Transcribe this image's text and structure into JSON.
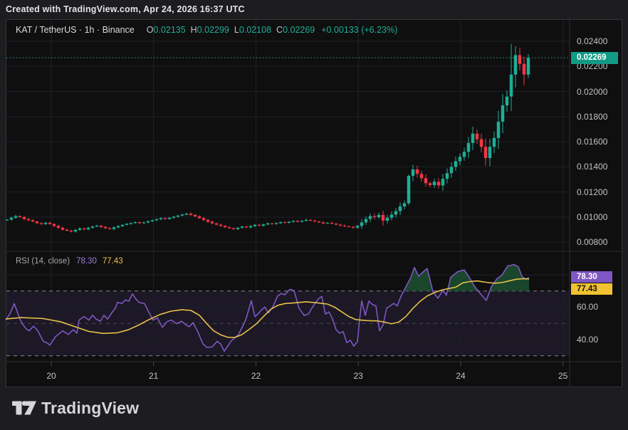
{
  "header": {
    "credit": "Created with TradingView.com, Apr 24, 2026 16:37 UTC"
  },
  "legend": {
    "title": "KAT / TetherUS · 1h · Binance",
    "o_label": "O",
    "o": "0.02135",
    "h_label": "H",
    "h": "0.02299",
    "l_label": "L",
    "l": "0.02108",
    "c_label": "C",
    "c": "0.02269",
    "change": "+0.00133 (+6.23%)"
  },
  "rsi_legend": {
    "title": "RSI (14, close)",
    "value": "78.30",
    "ma_value": "77.43"
  },
  "price_axis": {
    "ticks": [
      {
        "label": "0.02400",
        "value": 0.024
      },
      {
        "label": "0.02200",
        "value": 0.022
      },
      {
        "label": "0.02000",
        "value": 0.02
      },
      {
        "label": "0.01800",
        "value": 0.018
      },
      {
        "label": "0.01600",
        "value": 0.016
      },
      {
        "label": "0.01400",
        "value": 0.014
      },
      {
        "label": "0.01200",
        "value": 0.012
      },
      {
        "label": "0.01000",
        "value": 0.01
      },
      {
        "label": "0.00800",
        "value": 0.008
      }
    ],
    "current_price_badge": "0.02269"
  },
  "rsi_axis": {
    "ticks": [
      {
        "label": "80.00",
        "value": 80
      },
      {
        "label": "60.00",
        "value": 60
      },
      {
        "label": "40.00",
        "value": 40
      }
    ],
    "rsi_badge": "78.30",
    "ma_badge": "77.43"
  },
  "time_axis": {
    "labels": [
      "20",
      "21",
      "22",
      "23",
      "24",
      "25"
    ]
  },
  "footer": {
    "brand": "TradingView"
  },
  "colors": {
    "up": "#1fae96",
    "down": "#f23645",
    "accent_teal": "#1fae96",
    "price_badge_bg": "#119b87",
    "rsi_line": "#7e57c2",
    "rsi_ma_line": "#e7c04a",
    "badge_purple": "#7e57c2",
    "badge_yellow": "#f2c230",
    "grid": "#1e2128",
    "band_fill": "rgba(126,87,194,0.12)",
    "dash_strong": "#a0a2ab",
    "dash_mid": "#54565f",
    "overbought_fill": "rgba(29,79,48,0.88)",
    "tick_mark": "#45464d",
    "separator": "#2c2d33"
  },
  "chart_data": {
    "type": "candlestick+rsi",
    "symbol": "KAT/TetherUS",
    "exchange": "Binance",
    "interval": "1h",
    "last_bar": {
      "open": 0.02135,
      "high": 0.02299,
      "low": 0.02108,
      "close": 0.02269,
      "change": 0.00133,
      "change_pct": 6.23
    },
    "price_range": [
      0.008,
      0.024
    ],
    "rsi_settings": "14, close",
    "rsi_last": 78.3,
    "rsi_ma_last": 77.43,
    "overbought": 70,
    "oversold": 30,
    "midline": 50,
    "day_ticks_x": [
      72,
      215.7,
      359.5,
      503.2,
      647,
      790.7
    ],
    "candles": {
      "first_open": 0.00975,
      "closes": [
        0.0098,
        0.00995,
        0.01008,
        0.01,
        0.00985,
        0.00975,
        0.00965,
        0.00952,
        0.00945,
        0.00955,
        0.00945,
        0.0093,
        0.00915,
        0.009,
        0.00892,
        0.00885,
        0.00898,
        0.0091,
        0.00903,
        0.00915,
        0.00925,
        0.00932,
        0.00922,
        0.00912,
        0.00905,
        0.00918,
        0.00928,
        0.00938,
        0.00946,
        0.00953,
        0.0096,
        0.00952,
        0.00958,
        0.00967,
        0.00975,
        0.00983,
        0.00992,
        0.00985,
        0.00995,
        0.01003,
        0.01012,
        0.0102,
        0.01028,
        0.01018,
        0.01006,
        0.00992,
        0.00978,
        0.00963,
        0.0095,
        0.0094,
        0.0093,
        0.0092,
        0.00912,
        0.00905,
        0.00915,
        0.00925,
        0.00918,
        0.00928,
        0.00938,
        0.00932,
        0.00942,
        0.0095,
        0.00945,
        0.00952,
        0.0096,
        0.00955,
        0.00963,
        0.0097,
        0.00963,
        0.0097,
        0.00978,
        0.00972,
        0.00965,
        0.00958,
        0.0095,
        0.00955,
        0.00948,
        0.0094,
        0.00933,
        0.00927,
        0.00922,
        0.00916,
        0.0093,
        0.00958,
        0.00985,
        0.01008,
        0.01,
        0.01018,
        0.00972,
        0.00995,
        0.0102,
        0.01048,
        0.01085,
        0.0111,
        0.01328,
        0.0138,
        0.01345,
        0.0131,
        0.0127,
        0.01255,
        0.01282,
        0.01252,
        0.01305,
        0.0135,
        0.014,
        0.01445,
        0.0148,
        0.0152,
        0.0159,
        0.01665,
        0.0162,
        0.0156,
        0.0147,
        0.0156,
        0.0163,
        0.0176,
        0.0189,
        0.0196,
        0.02135,
        0.0229,
        0.0222,
        0.02135,
        0.02269
      ],
      "overrides": {
        "86": {
          "h": 0.0103,
          "l": 0.0098
        },
        "94": {
          "h": 0.0134,
          "l": 0.01095
        },
        "118": {
          "h": 0.0238
        },
        "119": {
          "h": 0.02362
        },
        "120": {
          "h": 0.0235
        },
        "121": {
          "l": 0.0205
        },
        "122": {
          "h": 0.02299,
          "l": 0.02108
        }
      }
    },
    "rsi_line_points": [
      [
        8,
        52
      ],
      [
        14,
        56
      ],
      [
        20,
        62.2
      ],
      [
        26,
        55
      ],
      [
        31,
        49.8
      ],
      [
        37,
        46.5
      ],
      [
        41,
        45.4
      ],
      [
        47,
        48.3
      ],
      [
        53,
        45.5
      ],
      [
        61,
        38.8
      ],
      [
        66,
        38
      ],
      [
        70,
        36.6
      ],
      [
        78,
        41.8
      ],
      [
        84,
        44
      ],
      [
        88,
        45.4
      ],
      [
        96,
        43.2
      ],
      [
        103,
        46.1
      ],
      [
        108,
        43.9
      ],
      [
        111,
        52
      ],
      [
        118,
        54.2
      ],
      [
        125,
        52
      ],
      [
        130,
        55
      ],
      [
        135,
        52.6
      ],
      [
        141,
        51.3
      ],
      [
        146,
        55
      ],
      [
        151,
        52.6
      ],
      [
        157,
        56.5
      ],
      [
        162,
        59.4
      ],
      [
        165,
        63
      ],
      [
        171,
        62.2
      ],
      [
        176,
        64.4
      ],
      [
        181,
        63.7
      ],
      [
        186,
        68.2
      ],
      [
        191,
        65
      ],
      [
        195,
        63
      ],
      [
        203,
        62.2
      ],
      [
        208,
        57.8
      ],
      [
        215,
        52
      ],
      [
        221,
        53.4
      ],
      [
        228,
        47.6
      ],
      [
        235,
        51.2
      ],
      [
        241,
        52
      ],
      [
        248,
        49.8
      ],
      [
        255,
        51.3
      ],
      [
        261,
        49.1
      ],
      [
        266,
        47.9
      ],
      [
        271,
        50.5
      ],
      [
        278,
        44.7
      ],
      [
        285,
        37.3
      ],
      [
        291,
        35.1
      ],
      [
        298,
        35.5
      ],
      [
        305,
        38.9
      ],
      [
        310,
        37.2
      ],
      [
        315,
        32.8
      ],
      [
        325,
        39.3
      ],
      [
        335,
        43.1
      ],
      [
        345,
        52
      ],
      [
        353,
        64
      ],
      [
        358,
        54.2
      ],
      [
        362,
        55.7
      ],
      [
        367,
        58.2
      ],
      [
        372,
        60.1
      ],
      [
        377,
        56.4
      ],
      [
        383,
        60.1
      ],
      [
        390,
        66.9
      ],
      [
        395,
        68.4
      ],
      [
        400,
        67.7
      ],
      [
        407,
        71
      ],
      [
        413,
        70.3
      ],
      [
        420,
        59.3
      ],
      [
        427,
        54.9
      ],
      [
        433,
        55.7
      ],
      [
        440,
        60.8
      ],
      [
        447,
        65.1
      ],
      [
        452,
        66.6
      ],
      [
        457,
        55.7
      ],
      [
        462,
        57.1
      ],
      [
        467,
        52.7
      ],
      [
        472,
        46.1
      ],
      [
        477,
        43.9
      ],
      [
        482,
        44.9
      ],
      [
        487,
        38
      ],
      [
        492,
        39.5
      ],
      [
        497,
        35.9
      ],
      [
        502,
        38.8
      ],
      [
        505,
        52
      ],
      [
        508,
        63.8
      ],
      [
        513,
        54.9
      ],
      [
        518,
        63.8
      ],
      [
        523,
        61.6
      ],
      [
        528,
        60.8
      ],
      [
        533,
        45.4
      ],
      [
        538,
        49
      ],
      [
        543,
        59.3
      ],
      [
        548,
        60.8
      ],
      [
        553,
        62.3
      ],
      [
        558,
        60.8
      ],
      [
        563,
        66.6
      ],
      [
        570,
        72.5
      ],
      [
        577,
        78.4
      ],
      [
        582,
        84.5
      ],
      [
        588,
        79.1
      ],
      [
        593,
        81.3
      ],
      [
        600,
        83.9
      ],
      [
        608,
        69.6
      ],
      [
        615,
        65.5
      ],
      [
        622,
        70.3
      ],
      [
        627,
        67.4
      ],
      [
        633,
        78.4
      ],
      [
        643,
        82
      ],
      [
        652,
        83
      ],
      [
        658,
        79.1
      ],
      [
        667,
        72.5
      ],
      [
        675,
        68.1
      ],
      [
        683,
        64.1
      ],
      [
        690,
        72.5
      ],
      [
        698,
        77.6
      ],
      [
        705,
        79.8
      ],
      [
        713,
        85.4
      ],
      [
        722,
        86.3
      ],
      [
        728,
        84.9
      ],
      [
        733,
        79.1
      ],
      [
        738,
        77.2
      ],
      [
        743,
        78.3
      ]
    ],
    "rsi_ma_points": [
      [
        8,
        52.7
      ],
      [
        30,
        53.6
      ],
      [
        60,
        53
      ],
      [
        85,
        51
      ],
      [
        105,
        48
      ],
      [
        125,
        45
      ],
      [
        145,
        43.8
      ],
      [
        165,
        44.2
      ],
      [
        180,
        46
      ],
      [
        195,
        49
      ],
      [
        210,
        52.5
      ],
      [
        225,
        55.5
      ],
      [
        240,
        57.5
      ],
      [
        255,
        58.4
      ],
      [
        268,
        58
      ],
      [
        280,
        55
      ],
      [
        290,
        50
      ],
      [
        300,
        45.4
      ],
      [
        310,
        42.9
      ],
      [
        320,
        41.4
      ],
      [
        330,
        41.3
      ],
      [
        340,
        43.1
      ],
      [
        350,
        46.3
      ],
      [
        360,
        49.7
      ],
      [
        370,
        54.2
      ],
      [
        380,
        58.6
      ],
      [
        390,
        61.1
      ],
      [
        400,
        62.2
      ],
      [
        415,
        62.7
      ],
      [
        430,
        63.3
      ],
      [
        445,
        62.7
      ],
      [
        460,
        61.9
      ],
      [
        470,
        60
      ],
      [
        480,
        57.1
      ],
      [
        490,
        54.2
      ],
      [
        500,
        52.3
      ],
      [
        515,
        51.7
      ],
      [
        530,
        51.5
      ],
      [
        540,
        50.8
      ],
      [
        550,
        49.7
      ],
      [
        560,
        50.8
      ],
      [
        570,
        54.2
      ],
      [
        580,
        59.3
      ],
      [
        590,
        63.6
      ],
      [
        600,
        66.9
      ],
      [
        610,
        69
      ],
      [
        620,
        70.5
      ],
      [
        630,
        71.5
      ],
      [
        640,
        72.3
      ],
      [
        650,
        75
      ],
      [
        660,
        75.8
      ],
      [
        670,
        76.2
      ],
      [
        685,
        75.2
      ],
      [
        695,
        74.8
      ],
      [
        705,
        75.2
      ],
      [
        715,
        76.2
      ],
      [
        725,
        77.2
      ],
      [
        735,
        77.6
      ],
      [
        743,
        77.43
      ]
    ]
  }
}
